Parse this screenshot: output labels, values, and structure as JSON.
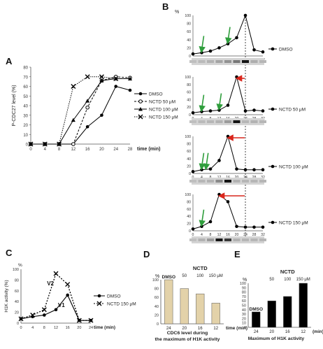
{
  "chart_data": [
    {
      "panel": "A",
      "type": "line",
      "ylabel": "P-CDC27 level (%)",
      "xlabel": "time (min)",
      "x": [
        0,
        4,
        8,
        12,
        16,
        20,
        24,
        28
      ],
      "xlim": [
        0,
        28
      ],
      "ylim": [
        0,
        80
      ],
      "yticks": [
        0,
        10,
        20,
        30,
        40,
        50,
        60,
        70,
        80
      ],
      "legend_position": "right",
      "series": [
        {
          "name": "DMSO",
          "values": [
            0,
            0,
            0,
            0,
            18,
            30,
            60,
            56
          ]
        },
        {
          "name": "NCTD 50 μM",
          "values": [
            0,
            0,
            0,
            0,
            38,
            66,
            70,
            69
          ]
        },
        {
          "name": "NCTD 100 μM",
          "values": [
            0,
            0,
            0,
            25,
            45,
            66,
            68,
            68
          ]
        },
        {
          "name": "NCTD 150 μM",
          "values": [
            0,
            0,
            0,
            60,
            70,
            70,
            68,
            null
          ]
        }
      ]
    },
    {
      "panel": "B",
      "type": "line",
      "ylabel": "%",
      "x": [
        0,
        4,
        8,
        12,
        16,
        20,
        24,
        28,
        32
      ],
      "xlim": [
        0,
        32
      ],
      "ylim": [
        0,
        100
      ],
      "yticks": [
        0,
        20,
        40,
        60,
        80,
        100
      ],
      "series": [
        {
          "name": "DMSO",
          "values": [
            5,
            8,
            12,
            20,
            30,
            45,
            100,
            15,
            10
          ],
          "arrows_at": [
            4,
            16
          ]
        },
        {
          "name": "NCTD 50 μM",
          "values": [
            5,
            8,
            10,
            12,
            25,
            100,
            10,
            12,
            10
          ],
          "arrows_at": [
            4,
            12
          ]
        },
        {
          "name": "NCTD 100 μM",
          "values": [
            5,
            10,
            12,
            35,
            100,
            12,
            10,
            10,
            10
          ],
          "arrows_at": [
            4,
            6
          ]
        },
        {
          "name": "NCTD 150 μM",
          "values": [
            5,
            12,
            25,
            100,
            80,
            12,
            10,
            10,
            10
          ],
          "arrows_at": [
            4
          ]
        }
      ]
    },
    {
      "panel": "C",
      "type": "line",
      "ylabel": "H1K activity (%)",
      "xlabel": "time (min)",
      "x": [
        0,
        4,
        8,
        12,
        16,
        20,
        24
      ],
      "xlim": [
        0,
        24
      ],
      "ylim": [
        0,
        100
      ],
      "yticks": [
        0,
        20,
        40,
        60,
        80,
        100
      ],
      "legend_position": "right",
      "annotations": [
        "V2",
        "V1"
      ],
      "series": [
        {
          "name": "DMSO",
          "values": [
            8,
            12,
            15,
            25,
            52,
            5,
            5
          ]
        },
        {
          "name": "NCTD 150 μM",
          "values": [
            8,
            15,
            25,
            92,
            72,
            5,
            5
          ]
        }
      ]
    },
    {
      "panel": "D",
      "type": "bar",
      "ylabel": "%",
      "xlabel": "time (min)",
      "caption": [
        "CDC6 level during",
        "the maximum of H1K activity"
      ],
      "group_label": "NCTD",
      "categories": [
        "24",
        "20",
        "16",
        "12"
      ],
      "bar_labels": [
        "DMSO",
        "50",
        "100",
        "150 μM"
      ],
      "values": [
        100,
        80,
        68,
        47
      ],
      "ylim": [
        0,
        100
      ],
      "yticks": [
        0,
        20,
        40,
        60,
        80,
        100
      ]
    },
    {
      "panel": "E",
      "type": "bar",
      "ylabel": "%",
      "xlabel": "(min)",
      "caption": [
        "Maximum of H1K activity"
      ],
      "group_label": "NCTD",
      "categories": [
        "24",
        "20",
        "16",
        "12"
      ],
      "bar_labels": [
        "DMSO",
        "50",
        "100",
        "150 μM"
      ],
      "values": [
        35,
        60,
        70,
        100
      ],
      "ylim": [
        0,
        100
      ],
      "yticks": [
        0,
        10,
        20,
        30,
        40,
        50,
        60,
        70,
        80,
        90,
        100
      ]
    }
  ],
  "panel_letters": [
    "A",
    "B",
    "C",
    "D",
    "E"
  ],
  "colors": {
    "line": "#000000",
    "bar_d": "#e3d2a9",
    "bar_e": "#000000",
    "arrow_green": "#2f9e3c",
    "arrow_red": "#d9261c",
    "dashed_ref": "#333333"
  }
}
